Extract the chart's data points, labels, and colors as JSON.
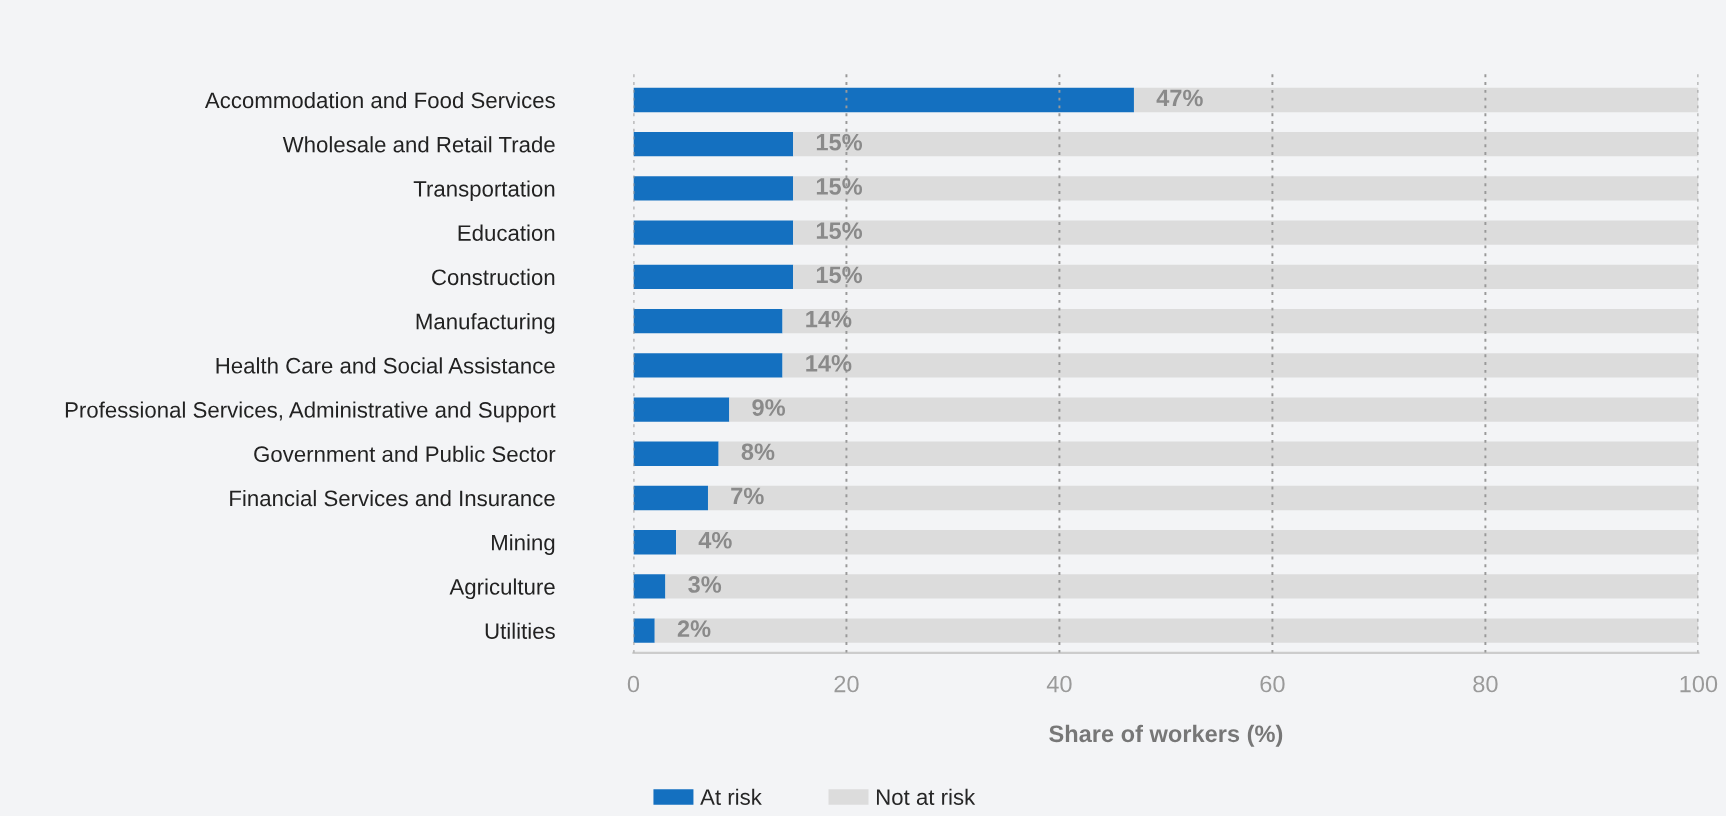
{
  "chart_data": {
    "type": "bar",
    "orientation": "horizontal",
    "stacked": true,
    "categories": [
      "Accommodation and Food Services",
      "Wholesale and Retail Trade",
      "Transportation",
      "Education",
      "Construction",
      "Manufacturing",
      "Health Care and Social Assistance",
      "Professional Services, Administrative and Support",
      "Government and Public Sector",
      "Financial Services and Insurance",
      "Mining",
      "Agriculture",
      "Utilities"
    ],
    "series": [
      {
        "name": "At risk",
        "color": "#1470c0",
        "values": [
          47,
          15,
          15,
          15,
          15,
          14,
          14,
          9,
          8,
          7,
          4,
          3,
          2
        ],
        "value_labels": [
          "47%",
          "15%",
          "15%",
          "15%",
          "15%",
          "14%",
          "14%",
          "9%",
          "8%",
          "7%",
          "4%",
          "3%",
          "2%"
        ]
      },
      {
        "name": "Not at risk",
        "color": "#dcdcdc",
        "values": [
          53,
          85,
          85,
          85,
          85,
          86,
          86,
          91,
          92,
          93,
          96,
          97,
          98
        ]
      }
    ],
    "xlabel": "Share of workers (%)",
    "xlim": [
      0,
      100
    ],
    "xticks": [
      0,
      20,
      40,
      60,
      80,
      100
    ],
    "grid": "x",
    "legend": "bottom left"
  }
}
